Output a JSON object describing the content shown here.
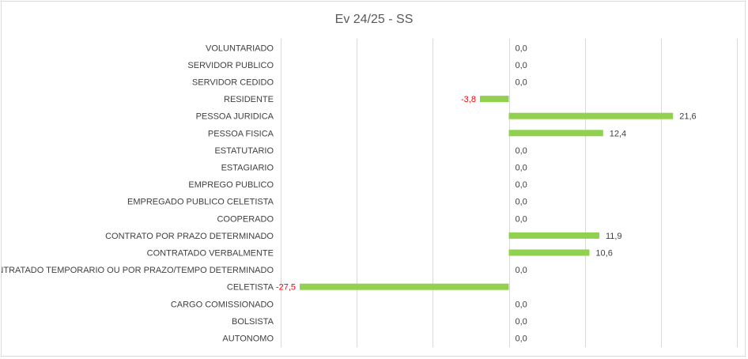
{
  "chart_data": {
    "type": "bar",
    "orientation": "horizontal",
    "title": "Ev 24/25 - SS",
    "xlabel": "",
    "ylabel": "",
    "xlim": [
      -30,
      30
    ],
    "grid": "vertical",
    "legend": "none",
    "bar_color": "#92d050",
    "positive_label_color": "#404040",
    "negative_label_color": "#ff0000",
    "categories": [
      "VOLUNTARIADO",
      "SERVIDOR PUBLICO",
      "SERVIDOR CEDIDO",
      "RESIDENTE",
      "PESSOA JURIDICA",
      "PESSOA FISICA",
      "ESTATUTARIO",
      "ESTAGIARIO",
      "EMPREGO PUBLICO",
      "EMPREGADO PUBLICO CELETISTA",
      "COOPERADO",
      "CONTRATO POR PRAZO DETERMINADO",
      "CONTRATADO VERBALMENTE",
      "CONTRATADO TEMPORARIO OU POR PRAZO/TEMPO DETERMINADO",
      "CELETISTA",
      "CARGO COMISSIONADO",
      "BOLSISTA",
      "AUTONOMO"
    ],
    "values": [
      0.0,
      0.0,
      0.0,
      -3.8,
      21.6,
      12.4,
      0.0,
      0.0,
      0.0,
      0.0,
      0.0,
      11.9,
      10.6,
      0.0,
      -27.5,
      0.0,
      0.0,
      0.0
    ],
    "value_labels": [
      "0,0",
      "0,0",
      "0,0",
      "-3,8",
      "21,6",
      "12,4",
      "0,0",
      "0,0",
      "0,0",
      "0,0",
      "0,0",
      "11,9",
      "10,6",
      "0,0",
      "-27,5",
      "0,0",
      "0,0",
      "0,0"
    ]
  }
}
